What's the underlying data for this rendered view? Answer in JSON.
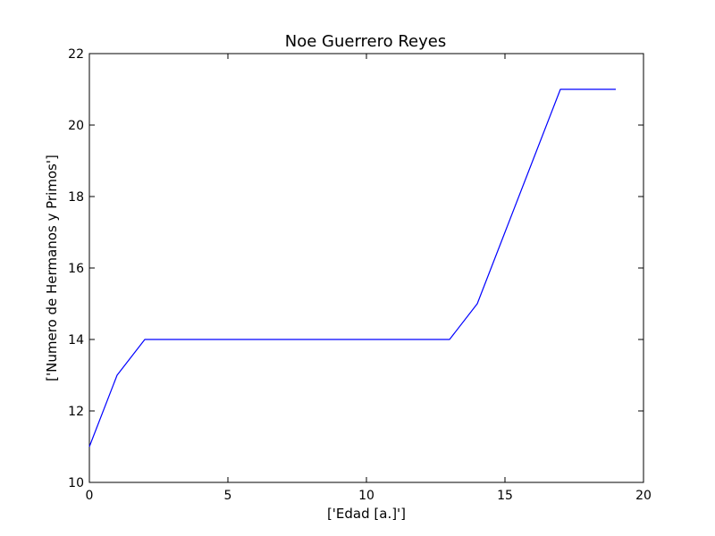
{
  "chart_data": {
    "type": "line",
    "title": "Noe Guerrero Reyes",
    "xlabel": "['Edad [a.]']",
    "ylabel": "['Numero de Hermanos y Primos']",
    "xlim": [
      0,
      20
    ],
    "ylim": [
      10,
      22
    ],
    "xticks": [
      0,
      5,
      10,
      15,
      20
    ],
    "yticks": [
      10,
      12,
      14,
      16,
      18,
      20,
      22
    ],
    "grid": false,
    "series": [
      {
        "name": "series-1",
        "color": "#0000ff",
        "x": [
          0,
          1,
          2,
          3,
          4,
          5,
          6,
          7,
          8,
          9,
          10,
          11,
          12,
          13,
          14,
          15,
          16,
          17,
          18,
          19
        ],
        "y": [
          11,
          13,
          14,
          14,
          14,
          14,
          14,
          14,
          14,
          14,
          14,
          14,
          14,
          14,
          15,
          17,
          19,
          21,
          21,
          21
        ]
      }
    ]
  }
}
